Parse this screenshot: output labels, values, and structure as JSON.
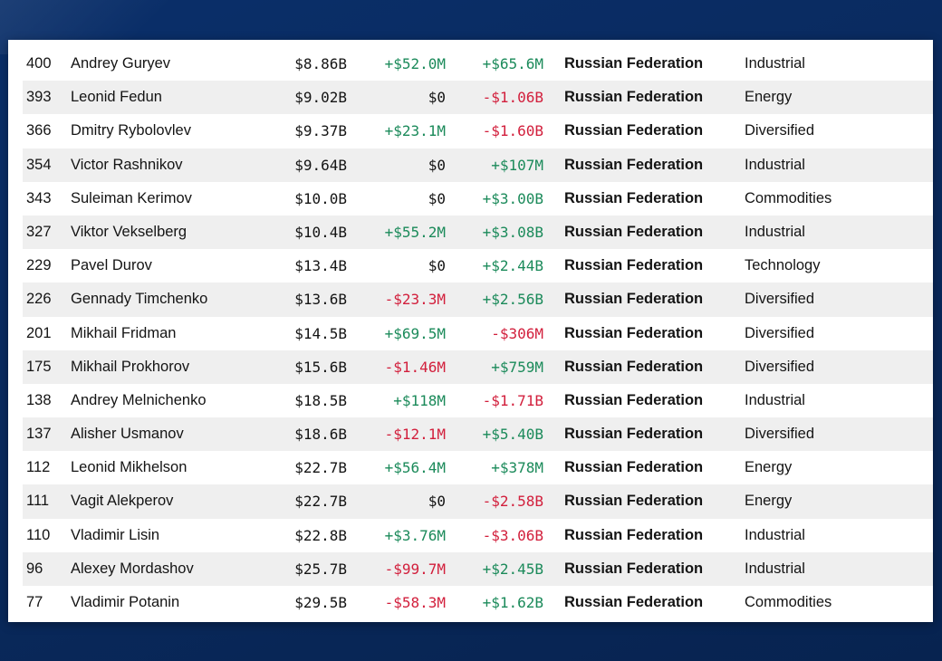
{
  "colors": {
    "positive": "#1b8a5a",
    "negative": "#d21f3c",
    "neutral": "#141414",
    "background": "#0a2f6a",
    "row_alt": "#efefef"
  },
  "rows": [
    {
      "rank": "400",
      "name": "Andrey Guryev",
      "net_worth": "$8.86B",
      "last_change": "+$52.0M",
      "last_dir": "pos",
      "ytd_change": "+$65.6M",
      "ytd_dir": "pos",
      "country": "Russian Federation",
      "industry": "Industrial"
    },
    {
      "rank": "393",
      "name": "Leonid Fedun",
      "net_worth": "$9.02B",
      "last_change": "$0",
      "last_dir": "flat",
      "ytd_change": "-$1.06B",
      "ytd_dir": "neg",
      "country": "Russian Federation",
      "industry": "Energy"
    },
    {
      "rank": "366",
      "name": "Dmitry Rybolovlev",
      "net_worth": "$9.37B",
      "last_change": "+$23.1M",
      "last_dir": "pos",
      "ytd_change": "-$1.60B",
      "ytd_dir": "neg",
      "country": "Russian Federation",
      "industry": "Diversified"
    },
    {
      "rank": "354",
      "name": "Victor Rashnikov",
      "net_worth": "$9.64B",
      "last_change": "$0",
      "last_dir": "flat",
      "ytd_change": "+$107M",
      "ytd_dir": "pos",
      "country": "Russian Federation",
      "industry": "Industrial"
    },
    {
      "rank": "343",
      "name": "Suleiman Kerimov",
      "net_worth": "$10.0B",
      "last_change": "$0",
      "last_dir": "flat",
      "ytd_change": "+$3.00B",
      "ytd_dir": "pos",
      "country": "Russian Federation",
      "industry": "Commodities"
    },
    {
      "rank": "327",
      "name": "Viktor Vekselberg",
      "net_worth": "$10.4B",
      "last_change": "+$55.2M",
      "last_dir": "pos",
      "ytd_change": "+$3.08B",
      "ytd_dir": "pos",
      "country": "Russian Federation",
      "industry": "Industrial"
    },
    {
      "rank": "229",
      "name": "Pavel Durov",
      "net_worth": "$13.4B",
      "last_change": "$0",
      "last_dir": "flat",
      "ytd_change": "+$2.44B",
      "ytd_dir": "pos",
      "country": "Russian Federation",
      "industry": "Technology"
    },
    {
      "rank": "226",
      "name": "Gennady Timchenko",
      "net_worth": "$13.6B",
      "last_change": "-$23.3M",
      "last_dir": "neg",
      "ytd_change": "+$2.56B",
      "ytd_dir": "pos",
      "country": "Russian Federation",
      "industry": "Diversified"
    },
    {
      "rank": "201",
      "name": "Mikhail Fridman",
      "net_worth": "$14.5B",
      "last_change": "+$69.5M",
      "last_dir": "pos",
      "ytd_change": "-$306M",
      "ytd_dir": "neg",
      "country": "Russian Federation",
      "industry": "Diversified"
    },
    {
      "rank": "175",
      "name": "Mikhail Prokhorov",
      "net_worth": "$15.6B",
      "last_change": "-$1.46M",
      "last_dir": "neg",
      "ytd_change": "+$759M",
      "ytd_dir": "pos",
      "country": "Russian Federation",
      "industry": "Diversified"
    },
    {
      "rank": "138",
      "name": "Andrey Melnichenko",
      "net_worth": "$18.5B",
      "last_change": "+$118M",
      "last_dir": "pos",
      "ytd_change": "-$1.71B",
      "ytd_dir": "neg",
      "country": "Russian Federation",
      "industry": "Industrial"
    },
    {
      "rank": "137",
      "name": "Alisher Usmanov",
      "net_worth": "$18.6B",
      "last_change": "-$12.1M",
      "last_dir": "neg",
      "ytd_change": "+$5.40B",
      "ytd_dir": "pos",
      "country": "Russian Federation",
      "industry": "Diversified"
    },
    {
      "rank": "112",
      "name": "Leonid Mikhelson",
      "net_worth": "$22.7B",
      "last_change": "+$56.4M",
      "last_dir": "pos",
      "ytd_change": "+$378M",
      "ytd_dir": "pos",
      "country": "Russian Federation",
      "industry": "Energy"
    },
    {
      "rank": "111",
      "name": "Vagit Alekperov",
      "net_worth": "$22.7B",
      "last_change": "$0",
      "last_dir": "flat",
      "ytd_change": "-$2.58B",
      "ytd_dir": "neg",
      "country": "Russian Federation",
      "industry": "Energy"
    },
    {
      "rank": "110",
      "name": "Vladimir Lisin",
      "net_worth": "$22.8B",
      "last_change": "+$3.76M",
      "last_dir": "pos",
      "ytd_change": "-$3.06B",
      "ytd_dir": "neg",
      "country": "Russian Federation",
      "industry": "Industrial"
    },
    {
      "rank": "96",
      "name": "Alexey Mordashov",
      "net_worth": "$25.7B",
      "last_change": "-$99.7M",
      "last_dir": "neg",
      "ytd_change": "+$2.45B",
      "ytd_dir": "pos",
      "country": "Russian Federation",
      "industry": "Industrial"
    },
    {
      "rank": "77",
      "name": "Vladimir Potanin",
      "net_worth": "$29.5B",
      "last_change": "-$58.3M",
      "last_dir": "neg",
      "ytd_change": "+$1.62B",
      "ytd_dir": "pos",
      "country": "Russian Federation",
      "industry": "Commodities"
    }
  ]
}
